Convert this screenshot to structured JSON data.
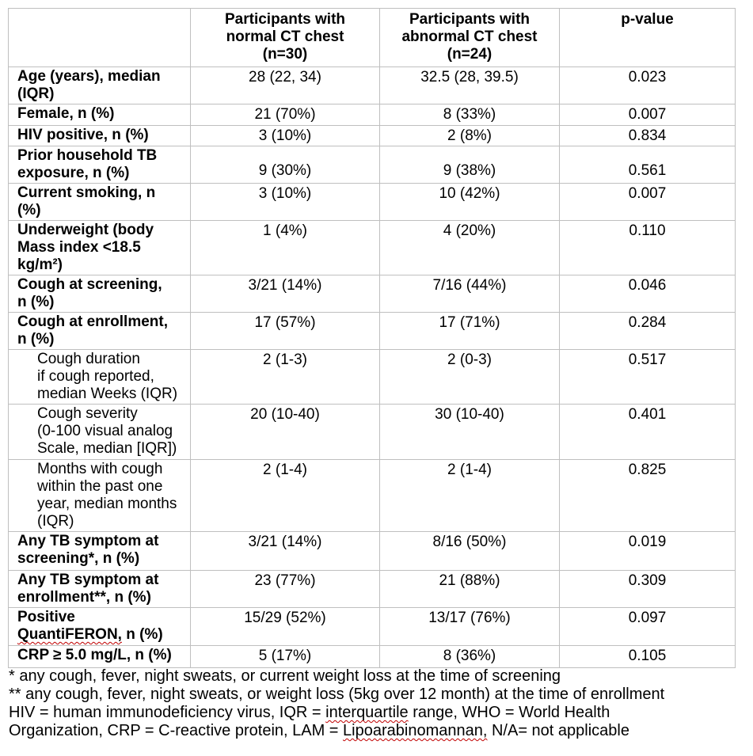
{
  "table": {
    "header": {
      "col0": "",
      "col1": "Participants with\nnormal CT chest\n(n=30)",
      "col2": "Participants with\nabnormal CT chest\n(n=24)",
      "col3": "p-value"
    },
    "rows": [
      {
        "label": [
          {
            "t": "Age (years), median\n(IQR)"
          }
        ],
        "bold": true,
        "normal": "28 (22, 34)",
        "abnormal": "32.5 (28, 39.5)",
        "p": "0.023"
      },
      {
        "label": [
          {
            "t": "Female, n (%)"
          }
        ],
        "bold": true,
        "normal": "21 (70%)",
        "abnormal": "8 (33%)",
        "p": "0.007"
      },
      {
        "label": [
          {
            "t": "HIV positive, n (%)"
          }
        ],
        "bold": true,
        "normal": "3 (10%)",
        "abnormal": "2 (8%)",
        "p": "0.834"
      },
      {
        "label": [
          {
            "t": "Prior household TB\nexposure, n (%)"
          }
        ],
        "bold": true,
        "valign": "bottom",
        "normal": "9 (30%)",
        "abnormal": "9 (38%)",
        "p": "0.561"
      },
      {
        "label": [
          {
            "t": "Current smoking, n\n(%)"
          }
        ],
        "bold": true,
        "normal": "3 (10%)",
        "abnormal": "10 (42%)",
        "p": "0.007"
      },
      {
        "label": [
          {
            "t": "Underweight (body\nMass index <18.5\nkg/m²)"
          }
        ],
        "bold": true,
        "normal": "1 (4%)",
        "abnormal": "4 (20%)",
        "p": "0.110"
      },
      {
        "label": [
          {
            "t": "Cough at screening,\nn (%)"
          }
        ],
        "bold": true,
        "normal": "3/21 (14%)",
        "abnormal": "7/16 (44%)",
        "p": "0.046"
      },
      {
        "label": [
          {
            "t": "Cough at enrollment,\nn (%)"
          }
        ],
        "bold": true,
        "normal": "17 (57%)",
        "abnormal": "17 (71%)",
        "p": "0.284"
      },
      {
        "label": [
          {
            "t": "Cough duration\nif cough reported,\nmedian Weeks (IQR)"
          }
        ],
        "indent": true,
        "normal": "2 (1-3)",
        "abnormal": "2 (0-3)",
        "p": "0.517"
      },
      {
        "label": [
          {
            "t": "Cough severity\n(0-100 visual analog\nScale, median [IQR])"
          }
        ],
        "indent": true,
        "normal": "20 (10-40)",
        "abnormal": "30 (10-40)",
        "p": "0.401"
      },
      {
        "label": [
          {
            "t": "Months with cough\nwithin the past one\nyear, median months\n(IQR)"
          }
        ],
        "indent": true,
        "normal": "2 (1-4)",
        "abnormal": "2 (1-4)",
        "p": "0.825"
      },
      {
        "label": [
          {
            "t": "Any TB symptom at\nscreening*, n (%)"
          }
        ],
        "bold": true,
        "normal": "3/21 (14%)",
        "abnormal": "8/16 (50%)",
        "p": "0.019"
      },
      {
        "label": [
          {
            "t": "Any TB symptom at\nenrollment**, n (%)"
          }
        ],
        "bold": true,
        "normal": "23 (77%)",
        "abnormal": "21 (88%)",
        "p": "0.309"
      },
      {
        "label": [
          {
            "t": "Positive\n"
          },
          {
            "t": "QuantiFERON,",
            "sq": true
          },
          {
            "t": " n (%)"
          }
        ],
        "bold": true,
        "normal": "15/29 (52%)",
        "abnormal": "13/17 (76%)",
        "p": "0.097"
      },
      {
        "label": [
          {
            "t": "CRP ≥ 5.0 mg/L, n (%)"
          }
        ],
        "bold": true,
        "normal": "5 (17%)",
        "abnormal": "8 (36%)",
        "p": "0.105"
      }
    ]
  },
  "footnotes": [
    [
      {
        "t": "* any cough, fever, night sweats, or current weight loss at the time of screening"
      }
    ],
    [
      {
        "t": "** any cough, fever, night sweats, or weight loss (5kg over 12 month) at the time of enrollment"
      }
    ],
    [
      {
        "t": "HIV = human immunodeficiency virus, IQR = "
      },
      {
        "t": "interquartile",
        "sq": true
      },
      {
        "t": " range, WHO = World Health"
      }
    ],
    [
      {
        "t": "Organization, CRP = C-reactive protein, LAM = "
      },
      {
        "t": "Lipoarabinomannan,",
        "sq": true
      },
      {
        "t": " N/A= not applicable"
      }
    ]
  ],
  "colors": {
    "text": "#000000",
    "table_border": "#bfbfbf",
    "spellcheck_squiggle": "#c00000"
  }
}
